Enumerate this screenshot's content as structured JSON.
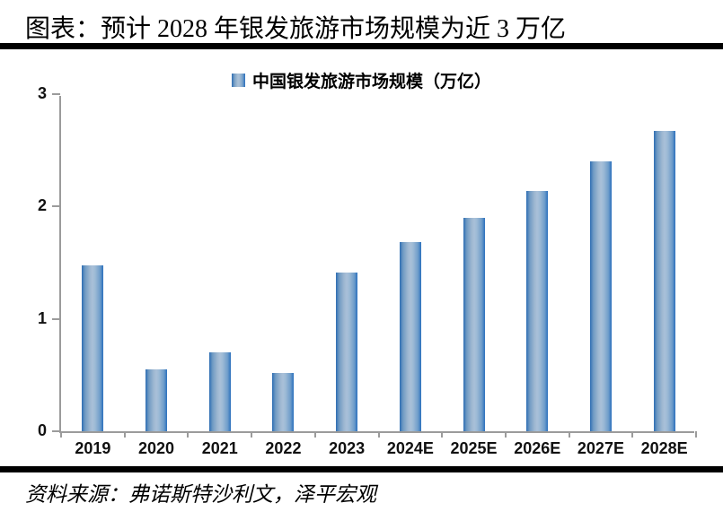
{
  "header": {
    "title": "图表：预计 2028 年银发旅游市场规模为近 3 万亿"
  },
  "legend": {
    "label": "中国银发旅游市场规模（万亿）"
  },
  "footer": {
    "source": "资料来源：弗诺斯特沙利文，泽平宏观"
  },
  "colors": {
    "bar_edge": "#2d6db3",
    "bar_center": "#a9c0d8",
    "axis": "#9b9b9b",
    "rule": "#000000",
    "text": "#000000"
  },
  "chart_data": {
    "type": "bar",
    "title": "中国银发旅游市场规模（万亿）",
    "categories": [
      "2019",
      "2020",
      "2021",
      "2022",
      "2023",
      "2024E",
      "2025E",
      "2026E",
      "2027E",
      "2028E"
    ],
    "values": [
      1.48,
      0.55,
      0.7,
      0.52,
      1.41,
      1.68,
      1.9,
      2.14,
      2.4,
      2.67
    ],
    "xlabel": "",
    "ylabel": "",
    "ylim": [
      0,
      3
    ],
    "yticks": [
      0,
      1,
      2,
      3
    ],
    "grid": false,
    "legend_position": "top-center"
  }
}
